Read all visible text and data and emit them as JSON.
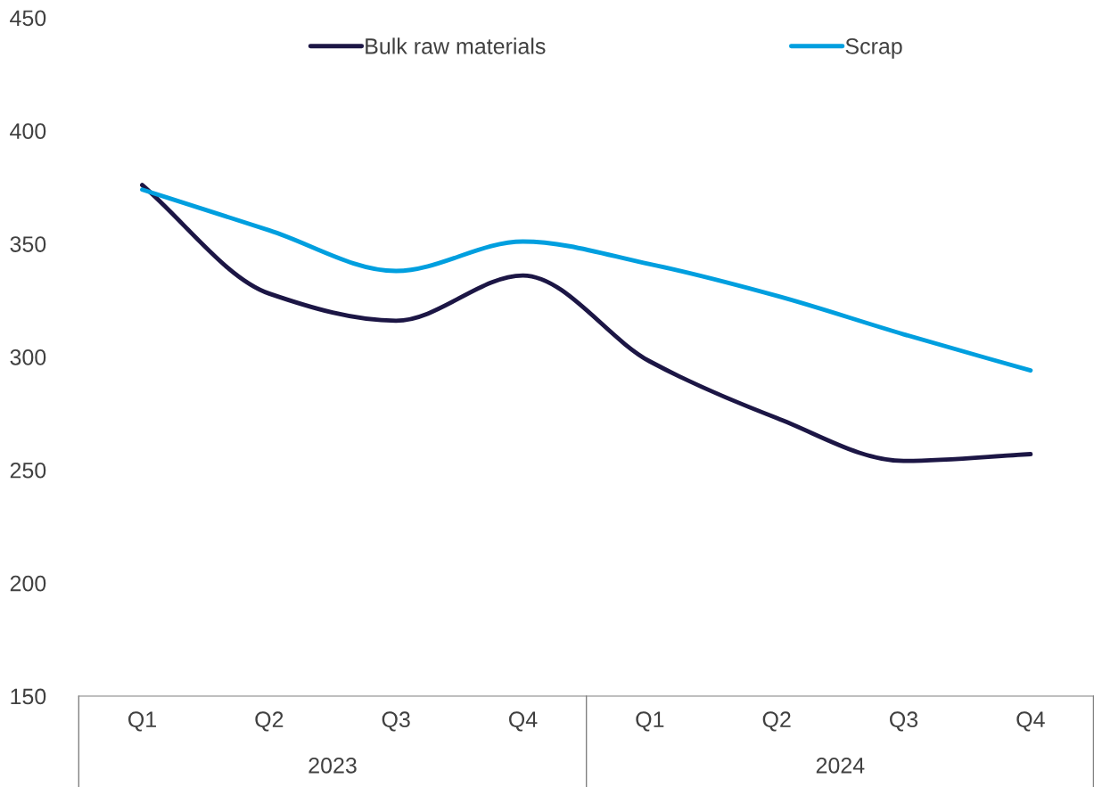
{
  "chart_data": {
    "type": "line",
    "categories": [
      "Q1",
      "Q2",
      "Q3",
      "Q4",
      "Q1",
      "Q2",
      "Q3",
      "Q4"
    ],
    "annotations": [
      "2023",
      "2024"
    ],
    "series": [
      {
        "name": "Bulk raw materials",
        "color": "#1c1645",
        "values": [
          376,
          328,
          316,
          336,
          298,
          273,
          254,
          257
        ]
      },
      {
        "name": "Scrap",
        "color": "#009fdf",
        "values": [
          374,
          356,
          338,
          351,
          341,
          327,
          310,
          294
        ]
      }
    ],
    "ylim": [
      150,
      450
    ],
    "yticks": [
      150,
      200,
      250,
      300,
      350,
      400,
      450
    ],
    "grid": false,
    "legend": "top",
    "marker": "none",
    "line_style": "solid"
  }
}
